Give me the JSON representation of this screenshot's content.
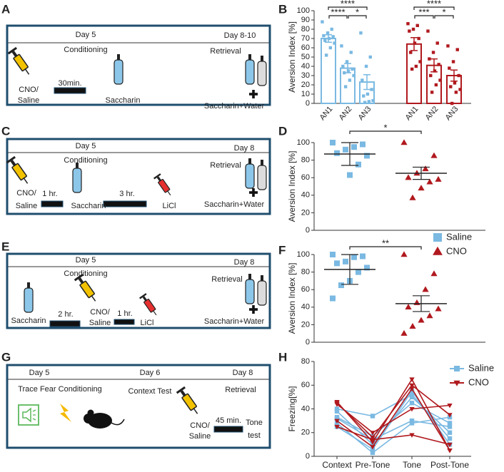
{
  "protocols": [
    {
      "panel": "A",
      "days": [
        "Day 5",
        "Day 8-10"
      ],
      "phases": [
        "Conditioning",
        "Retrieval"
      ],
      "labels": [
        "CNO/",
        "Saline",
        "30min.",
        "Saccharin",
        "Saccharin+Water"
      ]
    },
    {
      "panel": "C",
      "days": [
        "Day 5",
        "Day 8"
      ],
      "phases": [
        "Conditioning",
        "Retrieval"
      ],
      "labels": [
        "CNO/",
        "Saline",
        "1 hr.",
        "Saccharin",
        "3 hr.",
        "LiCl",
        "Saccharin+Water"
      ]
    },
    {
      "panel": "E",
      "days": [
        "Day 5",
        "Day 8"
      ],
      "phases": [
        "Conditioning",
        "Retrieval"
      ],
      "labels": [
        "Saccharin",
        "2 hr.",
        "CNO/",
        "Saline",
        "1 hr.",
        "LiCl",
        "Saccharin+Water"
      ]
    },
    {
      "panel": "G",
      "days": [
        "Day 5",
        "Day 6",
        "Day 8"
      ],
      "phases": [
        "Trace Fear Conditioning",
        "Context Test",
        "Retrieval"
      ],
      "labels": [
        "CNO/",
        "Saline",
        "45 min.",
        "Tone",
        "test"
      ]
    }
  ],
  "chart_data": [
    {
      "panel": "B",
      "type": "bar",
      "ylabel": "Aversion Index [%]",
      "ylim": [
        0,
        100
      ],
      "yticks": [
        0,
        10,
        20,
        30,
        40,
        50,
        60,
        70,
        80,
        90,
        100
      ],
      "groups": [
        {
          "categories": [
            "AN1",
            "AN2",
            "AN3"
          ],
          "color": "#7ab9e2",
          "values": [
            70,
            38,
            23
          ],
          "errors": [
            4,
            5,
            8
          ],
          "points": [
            [
              88,
              80,
              76,
              73,
              72,
              70,
              68,
              65,
              60,
              52
            ],
            [
              62,
              55,
              45,
              40,
              37,
              35,
              33,
              30,
              25,
              18
            ],
            [
              76,
              50,
              40,
              25,
              15,
              10,
              8,
              3,
              2,
              1
            ]
          ],
          "significance": [
            "****",
            "****",
            "*"
          ]
        },
        {
          "categories": [
            "AN1",
            "AN2",
            "AN3"
          ],
          "color": "#b0191e",
          "values": [
            64,
            41,
            30
          ],
          "errors": [
            7,
            7,
            6
          ],
          "points": [
            [
              86,
              84,
              80,
              78,
              70,
              65,
              55,
              45,
              40,
              37
            ],
            [
              78,
              65,
              55,
              48,
              42,
              35,
              30,
              25,
              20,
              12
            ],
            [
              62,
              58,
              45,
              38,
              30,
              22,
              18,
              15,
              12,
              0
            ]
          ],
          "significance": [
            "****",
            "***",
            "*"
          ]
        }
      ]
    },
    {
      "panel": "D",
      "type": "strip",
      "ylabel": "Aversion Index [%]",
      "ylim": [
        0,
        100
      ],
      "yticks": [
        0,
        20,
        40,
        60,
        80,
        100
      ],
      "significance": "*",
      "groups": [
        {
          "color": "#7ab9e2",
          "marker": "square",
          "points": [
            100,
            98,
            95,
            92,
            88,
            85,
            75,
            63
          ],
          "mean": 87,
          "error": 13
        },
        {
          "color": "#b0191e",
          "marker": "triangle",
          "points": [
            100,
            85,
            70,
            65,
            60,
            58,
            55,
            48,
            37
          ],
          "mean": 65,
          "error": 7
        }
      ],
      "legend": [
        {
          "name": "Saline",
          "color": "#7ab9e2",
          "marker": "square"
        },
        {
          "name": "CNO",
          "color": "#b0191e",
          "marker": "triangle"
        }
      ]
    },
    {
      "panel": "F",
      "type": "strip",
      "ylabel": "Aversion Index [%]",
      "ylim": [
        0,
        100
      ],
      "yticks": [
        0,
        20,
        40,
        60,
        80,
        100
      ],
      "significance": "**",
      "groups": [
        {
          "color": "#7ab9e2",
          "marker": "square",
          "points": [
            100,
            98,
            97,
            92,
            90,
            85,
            80,
            70,
            65,
            50
          ],
          "mean": 83,
          "error": 17
        },
        {
          "color": "#b0191e",
          "marker": "triangle",
          "points": [
            100,
            78,
            60,
            45,
            40,
            38,
            30,
            25,
            18,
            10
          ],
          "mean": 44,
          "error": 9
        }
      ]
    },
    {
      "panel": "H",
      "type": "line",
      "ylabel": "Freezing[%]",
      "ylim": [
        0,
        80
      ],
      "yticks": [
        0,
        20,
        40,
        60,
        80
      ],
      "categories": [
        "Context",
        "Pre-Tone",
        "Tone",
        "Post-Tone"
      ],
      "groups": [
        {
          "name": "Saline",
          "color": "#7ab9e2",
          "marker": "square",
          "lines": [
            [
              38,
              10,
              50,
              20
            ],
            [
              33,
              17,
              45,
              28
            ],
            [
              28,
              3,
              28,
              33
            ],
            [
              32,
              14,
              30,
              25
            ],
            [
              40,
              34,
              52,
              15
            ],
            [
              25,
              6,
              55,
              10
            ]
          ]
        },
        {
          "name": "CNO",
          "color": "#b0191e",
          "marker": "triangle-down",
          "lines": [
            [
              46,
              12,
              65,
              5
            ],
            [
              44,
              20,
              40,
              43
            ],
            [
              25,
              14,
              18,
              10
            ],
            [
              45,
              16,
              60,
              35
            ],
            [
              30,
              8,
              57,
              5
            ]
          ]
        }
      ]
    }
  ]
}
